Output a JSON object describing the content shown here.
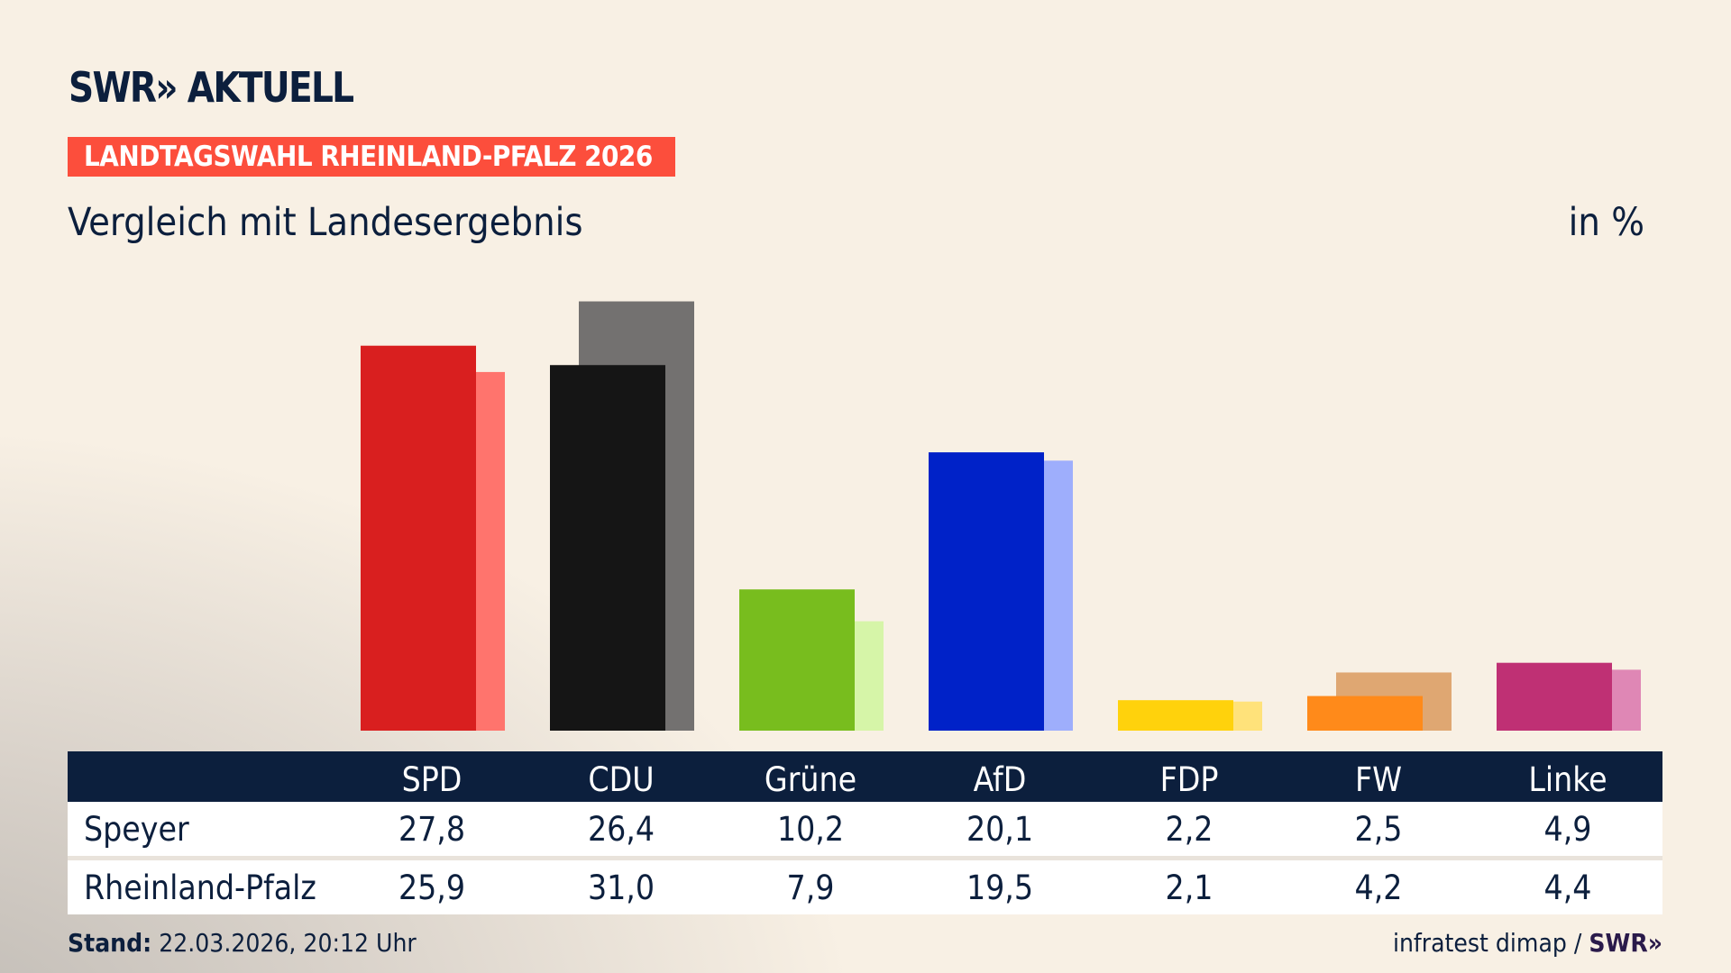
{
  "header": {
    "logo": "SWR» AKTUELL",
    "banner": "LANDTAGSWAHL RHEINLAND-PFALZ 2026",
    "subtitle": "Vergleich mit Landesergebnis",
    "unit": "in %"
  },
  "chart_data": {
    "type": "bar",
    "categories": [
      "SPD",
      "CDU",
      "Grüne",
      "AfD",
      "FDP",
      "FW",
      "Linke"
    ],
    "series": [
      {
        "name": "Speyer",
        "values": [
          27.8,
          26.4,
          10.2,
          20.1,
          2.2,
          2.5,
          4.9
        ],
        "colors": [
          "#d91f1f",
          "#151515",
          "#78bd1e",
          "#0022c8",
          "#ffd20c",
          "#ff8a1a",
          "#bf3074"
        ]
      },
      {
        "name": "Rheinland-Pfalz",
        "values": [
          25.9,
          31.0,
          7.9,
          19.5,
          2.1,
          4.2,
          4.4
        ],
        "colors": [
          "#ff746d",
          "#737170",
          "#d6f5a8",
          "#9eaefc",
          "#ffe27a",
          "#dfa772",
          "#df87b5"
        ]
      }
    ],
    "ylim": [
      0,
      31.0
    ]
  },
  "table": {
    "headers": [
      "SPD",
      "CDU",
      "Grüne",
      "AfD",
      "FDP",
      "FW",
      "Linke"
    ],
    "rows": [
      {
        "label": "Speyer",
        "values": [
          "27,8",
          "26,4",
          "10,2",
          "20,1",
          "2,2",
          "2,5",
          "4,9"
        ]
      },
      {
        "label": "Rheinland-Pfalz",
        "values": [
          "25,9",
          "31,0",
          "7,9",
          "19,5",
          "2,1",
          "4,2",
          "4,4"
        ]
      }
    ]
  },
  "footer": {
    "stand_label": "Stand:",
    "stand_value": "22.03.2026, 20:12 Uhr",
    "source": "infratest dimap /",
    "source_logo": "SWR»"
  }
}
